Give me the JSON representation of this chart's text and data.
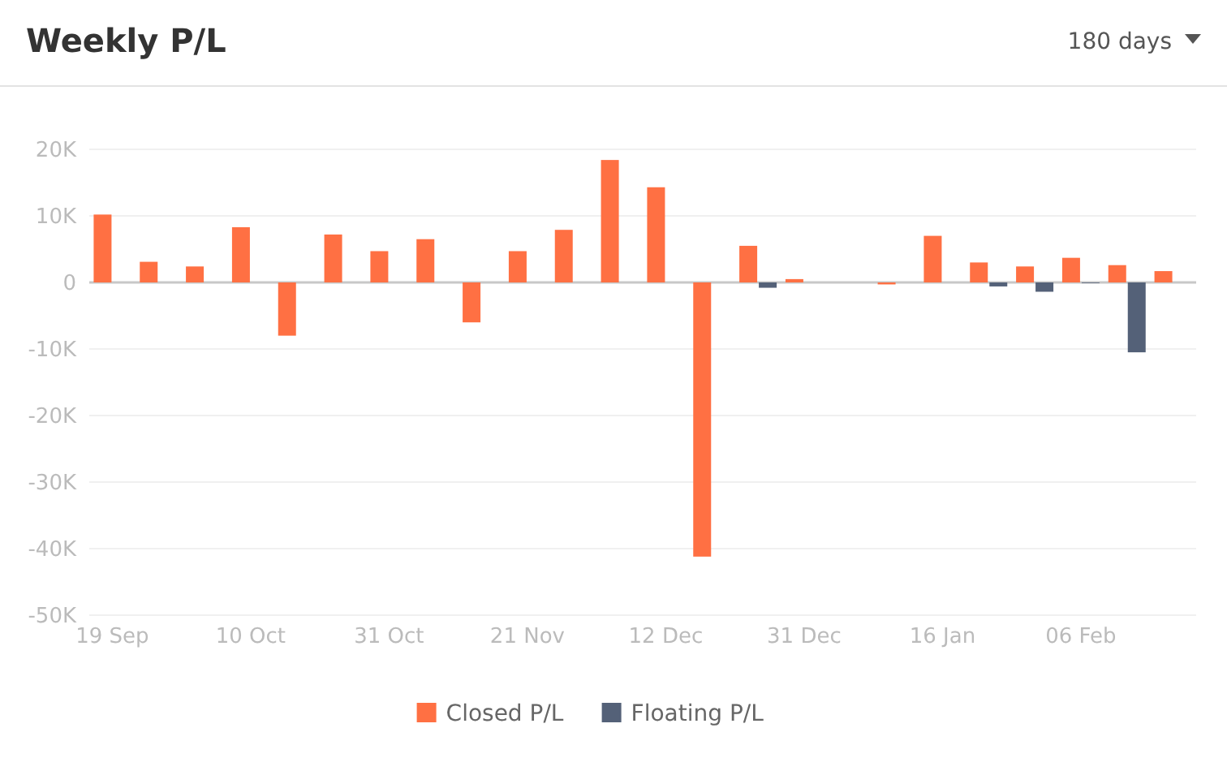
{
  "chart_data": {
    "type": "bar",
    "title": "Weekly P/L",
    "annotations": [
      "180 days"
    ],
    "categories": [
      "19 Sep",
      null,
      null,
      "10 Oct",
      null,
      null,
      "31 Oct",
      null,
      null,
      "21 Nov",
      null,
      null,
      "12 Dec",
      null,
      null,
      "31 Dec",
      null,
      null,
      "16 Jan",
      null,
      null,
      "06 Feb",
      null,
      null
    ],
    "series": [
      {
        "name": "Closed P/L",
        "color": "#ff7043",
        "values": [
          10200,
          3100,
          2400,
          8300,
          -8000,
          7200,
          4700,
          6500,
          -6000,
          4700,
          7900,
          18400,
          14300,
          -41200,
          5500,
          500,
          null,
          -300,
          7000,
          3000,
          2400,
          3700,
          2600,
          1700
        ]
      },
      {
        "name": "Floating P/L",
        "color": "#546178",
        "values": [
          null,
          null,
          null,
          null,
          null,
          null,
          null,
          null,
          null,
          null,
          null,
          null,
          null,
          null,
          -800,
          null,
          null,
          null,
          null,
          -600,
          -1400,
          -100,
          -10500,
          null
        ]
      }
    ],
    "ylim": [
      -50000,
      20000
    ],
    "yticks": [
      {
        "value": 20000,
        "label": "20K"
      },
      {
        "value": 10000,
        "label": "10K"
      },
      0,
      {
        "value": -10000,
        "label": "-10K"
      },
      {
        "value": -20000,
        "label": "-20K"
      },
      {
        "value": -30000,
        "label": "-30K"
      },
      {
        "value": -40000,
        "label": "-40K"
      },
      {
        "value": -50000,
        "label": "-50K"
      }
    ],
    "grid": "y",
    "legend": "bottom"
  }
}
